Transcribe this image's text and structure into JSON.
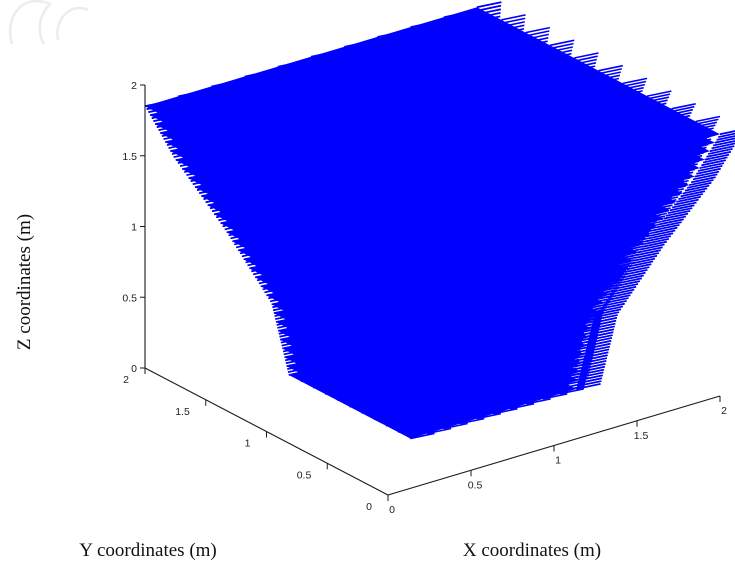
{
  "chart_data": {
    "type": "scatter",
    "subtype": "3d-vector-field",
    "title": "",
    "xlabel": "X coordinates (m)",
    "ylabel": "Y coordinates (m)",
    "zlabel": "Z coordinates (m)",
    "xlim": [
      0,
      2
    ],
    "ylim": [
      0,
      2
    ],
    "zlim": [
      0,
      2
    ],
    "x_ticks": [
      "0",
      "0.5",
      "1",
      "1.5",
      "2"
    ],
    "y_ticks": [
      "0",
      "0.5",
      "1",
      "1.5",
      "2"
    ],
    "z_ticks": [
      "0",
      "0.5",
      "1",
      "1.5",
      "2"
    ],
    "grid": false,
    "series_color": "#0000ff",
    "body_profile": {
      "z": [
        0,
        0.5,
        1.0,
        1.5,
        1.85
      ],
      "half_width": [
        0.5,
        0.56,
        0.72,
        0.9,
        1.0
      ]
    }
  }
}
